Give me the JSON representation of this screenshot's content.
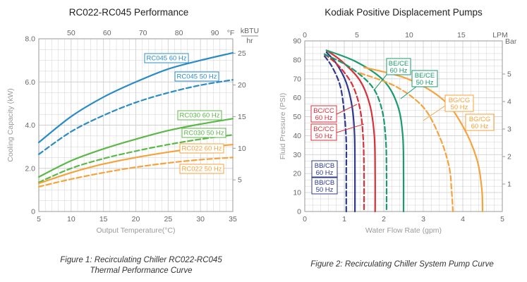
{
  "captions": {
    "fig1_line1": "Figure 1: Recirculating Chiller RC022-RC045",
    "fig1_line2": "Thermal Performance Curve",
    "fig2": "Figure 2: Recirculating Chiller System Pump Curve"
  },
  "chart_data": [
    {
      "type": "line",
      "title": "RC022-RC045 Performance",
      "xlabel": "Output Temperature(°C)",
      "ylabel": "Cooling Capacity (kW)",
      "xlim": [
        5,
        35
      ],
      "ylim": [
        0,
        8
      ],
      "x_ticks": [
        "5",
        "10",
        "15",
        "20",
        "25",
        "30",
        "35"
      ],
      "y_ticks": [
        "0",
        "2.0",
        "4.0",
        "6.0",
        "8.0"
      ],
      "top_axis": {
        "unit": "°F",
        "min": 41,
        "max": 95,
        "ticks": [
          "50",
          "60",
          "70",
          "80",
          "90"
        ]
      },
      "right_axis": {
        "unit_line1": "kBTU",
        "unit_line2": "hr",
        "ticks": [
          "5",
          "10",
          "15",
          "20",
          "25"
        ]
      },
      "grid": true,
      "colors": {
        "blue": "#2b8cc4",
        "green": "#5cb848",
        "orange": "#f5a33b",
        "grid": "#d0d0d0"
      },
      "series": [
        {
          "name": "RC045 60 Hz",
          "color": "#2b8cc4",
          "dash": false,
          "x": [
            5,
            10,
            15,
            20,
            25,
            30,
            35
          ],
          "y": [
            3.2,
            4.4,
            5.3,
            6.0,
            6.6,
            7.0,
            7.35
          ]
        },
        {
          "name": "RC045 50 Hz",
          "color": "#2b8cc4",
          "dash": true,
          "x": [
            5,
            10,
            15,
            20,
            25,
            30,
            35
          ],
          "y": [
            2.65,
            3.7,
            4.45,
            5.05,
            5.5,
            5.85,
            6.1
          ]
        },
        {
          "name": "RC030 60 Hz",
          "color": "#5cb848",
          "dash": false,
          "x": [
            5,
            10,
            15,
            20,
            25,
            30,
            35
          ],
          "y": [
            1.6,
            2.35,
            2.9,
            3.35,
            3.75,
            4.05,
            4.3
          ]
        },
        {
          "name": "RC030 50 Hz",
          "color": "#5cb848",
          "dash": true,
          "x": [
            5,
            10,
            15,
            20,
            25,
            30,
            35
          ],
          "y": [
            1.35,
            2.0,
            2.45,
            2.8,
            3.1,
            3.35,
            3.55
          ]
        },
        {
          "name": "RC022 60 Hz",
          "color": "#f5a33b",
          "dash": false,
          "x": [
            5,
            10,
            15,
            20,
            25,
            30,
            35
          ],
          "y": [
            1.3,
            1.8,
            2.2,
            2.5,
            2.75,
            2.95,
            3.1
          ]
        },
        {
          "name": "RC022 50 Hz",
          "color": "#f5a33b",
          "dash": true,
          "x": [
            5,
            10,
            15,
            20,
            25,
            30,
            35
          ],
          "y": [
            1.15,
            1.5,
            1.8,
            2.05,
            2.25,
            2.4,
            2.5
          ]
        }
      ]
    },
    {
      "type": "line",
      "title": "Kodiak Positive Displacement Pumps",
      "xlabel": "Water Flow Rate (gpm)",
      "ylabel": "Fluid Pressure (PSI)",
      "xlim": [
        0,
        5
      ],
      "ylim": [
        0,
        90
      ],
      "x_ticks": [
        "0",
        "1",
        "2",
        "3",
        "4",
        "5"
      ],
      "y_ticks": [
        "0",
        "10",
        "20",
        "30",
        "40",
        "50",
        "60",
        "70",
        "80",
        "90"
      ],
      "top_axis": {
        "unit": "LPM",
        "min": 0,
        "max": 18.93,
        "ticks": [
          "0",
          "5",
          "10",
          "15"
        ]
      },
      "right_axis": {
        "unit": "Bar",
        "ticks": [
          "1",
          "2",
          "3",
          "4",
          "5"
        ]
      },
      "grid": true,
      "colors": {
        "navy": "#2e3a8c",
        "red": "#d8313a",
        "green": "#1b9a6b",
        "orange": "#f5a33b"
      },
      "series": [
        {
          "name": "BB/CB 60 Hz",
          "color": "#2e3a8c",
          "dash": false,
          "x": [
            0.55,
            0.8,
            1.05,
            1.2,
            1.26,
            1.27,
            1.27
          ],
          "y": [
            84,
            78,
            68,
            55,
            40,
            20,
            0
          ]
        },
        {
          "name": "BB/CB 50 Hz",
          "color": "#2e3a8c",
          "dash": true,
          "x": [
            0.5,
            0.7,
            0.9,
            1.0,
            1.05,
            1.05,
            1.05
          ],
          "y": [
            82,
            76,
            66,
            52,
            37,
            20,
            0
          ]
        },
        {
          "name": "BC/CC 60 Hz",
          "color": "#d8313a",
          "dash": false,
          "x": [
            0.55,
            0.95,
            1.4,
            1.65,
            1.76,
            1.78,
            1.78
          ],
          "y": [
            85,
            79,
            69,
            56,
            40,
            20,
            0
          ]
        },
        {
          "name": "BC/CC 50 Hz",
          "color": "#d8313a",
          "dash": true,
          "x": [
            0.5,
            0.85,
            1.2,
            1.4,
            1.48,
            1.5,
            1.5
          ],
          "y": [
            83,
            77,
            67,
            54,
            38,
            20,
            0
          ]
        },
        {
          "name": "BE/CE 60 Hz",
          "color": "#1b9a6b",
          "dash": false,
          "x": [
            0.55,
            1.3,
            2.0,
            2.35,
            2.48,
            2.5,
            2.5
          ],
          "y": [
            85,
            79,
            69,
            56,
            40,
            20,
            0
          ]
        },
        {
          "name": "BE/CE 50 Hz",
          "color": "#1b9a6b",
          "dash": true,
          "x": [
            0.5,
            1.15,
            1.7,
            1.95,
            2.05,
            2.07,
            2.07
          ],
          "y": [
            83,
            76,
            66,
            54,
            38,
            20,
            0
          ]
        },
        {
          "name": "BG/CG 60 Hz",
          "color": "#f5a33b",
          "dash": false,
          "x": [
            1.5,
            2.6,
            3.5,
            4.0,
            4.35,
            4.48,
            4.5
          ],
          "y": [
            76,
            70,
            59,
            45,
            28,
            12,
            0
          ]
        },
        {
          "name": "BG/CG 50 Hz",
          "color": "#f5a33b",
          "dash": true,
          "x": [
            1.4,
            2.3,
            3.0,
            3.4,
            3.65,
            3.72,
            3.75
          ],
          "y": [
            73,
            66,
            55,
            40,
            24,
            10,
            0
          ]
        }
      ]
    }
  ]
}
